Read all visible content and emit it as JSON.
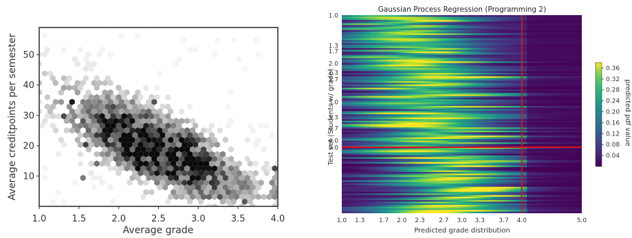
{
  "chart_data": [
    {
      "type": "heatmap",
      "subtype": "hexbin",
      "title": "",
      "xlabel": "Average grade",
      "ylabel": "Average creditpoints per semester",
      "xlim": [
        1.0,
        4.0
      ],
      "ylim": [
        0,
        59
      ],
      "xticks": [
        1.0,
        1.5,
        2.0,
        2.5,
        3.0,
        3.5,
        4.0
      ],
      "xtick_labels": [
        "1.0",
        "1.5",
        "2.0",
        "2.5",
        "3.0",
        "3.5",
        "4.0"
      ],
      "yticks": [
        10,
        20,
        30,
        40,
        50
      ],
      "ytick_labels": [
        "10",
        "20",
        "30",
        "40",
        "50"
      ],
      "colormap": "greys",
      "trend": "negative correlation: density ridge runs from about (1.3, 40) down to about (3.3, 12)",
      "density_peaks": [
        {
          "x": 2.6,
          "y": 18,
          "level": "high"
        },
        {
          "x": 2.1,
          "y": 25,
          "level": "high"
        },
        {
          "x": 3.2,
          "y": 10,
          "level": "high"
        },
        {
          "x": 4.0,
          "y": 5,
          "level": "medium"
        }
      ]
    },
    {
      "type": "heatmap",
      "title": "Gaussian Process Regression (Programming 2)",
      "xlabel": "Predicted grade distribution",
      "ylabel": "Test set (Students w/ grade)",
      "xlim": [
        1.0,
        5.0
      ],
      "xticks": [
        1.0,
        1.3,
        1.7,
        2.0,
        2.3,
        2.7,
        3.0,
        3.3,
        3.7,
        4.0,
        5.0
      ],
      "xtick_labels": [
        "1.0",
        "1.3",
        "1.7",
        "2.0",
        "2.3",
        "2.7",
        "3.0",
        "3.3",
        "3.7",
        "4.0",
        "5.0"
      ],
      "ytick_labels": [
        "1.0",
        "1.3",
        "1.7",
        "2.0",
        "2.3",
        "2.7",
        "3.0",
        "3.3",
        "3.7",
        "4.0",
        "5.0"
      ],
      "colormap": "viridis",
      "colorbar": {
        "label": "predicted pdf value",
        "ticks": [
          0.04,
          0.08,
          0.12,
          0.16,
          0.2,
          0.24,
          0.28,
          0.32,
          0.36
        ],
        "tick_labels": [
          "0.04",
          "0.08",
          "0.12",
          "0.16",
          "0.20",
          "0.24",
          "0.28",
          "0.32",
          "0.36"
        ],
        "range": [
          0.0,
          0.38
        ]
      },
      "reference_lines": [
        {
          "orientation": "vertical",
          "x": 4.0,
          "color": "#e0101a"
        },
        {
          "orientation": "horizontal",
          "y_label": "5.0",
          "color": "#e0101a"
        }
      ]
    }
  ]
}
